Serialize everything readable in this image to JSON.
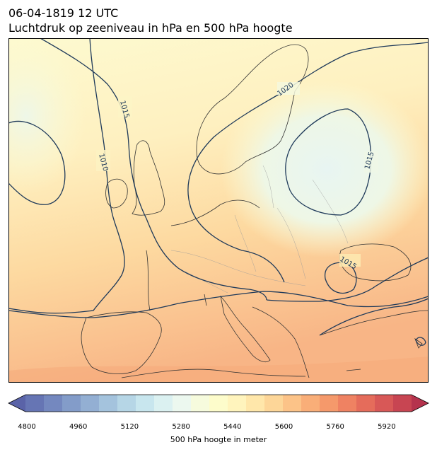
{
  "header": {
    "datetime": "06-04-1819 12 UTC",
    "subtitle": "Luchtdruk op zeeniveau in hPa en 500 hPa hoogte"
  },
  "map": {
    "region": "Europe",
    "isobar_labels": [
      {
        "text": "1015",
        "where": "north-atlantic"
      },
      {
        "text": "1010",
        "where": "west-of-ireland"
      },
      {
        "text": "1020",
        "where": "scandinavia"
      },
      {
        "text": "1015",
        "where": "baltic"
      },
      {
        "text": "1015",
        "where": "ukraine"
      }
    ],
    "colors": {
      "isobar": "#1f3a5a",
      "coast": "#333333",
      "border": "#999999"
    }
  },
  "colorbar": {
    "label": "500 hPa hoogte in meter",
    "ticks": [
      "4800",
      "4960",
      "5120",
      "5280",
      "5440",
      "5600",
      "5760",
      "5920"
    ],
    "colors": [
      "#5a63a8",
      "#6675b4",
      "#7488bf",
      "#839cc9",
      "#93afd3",
      "#a4c3dd",
      "#b6d6e6",
      "#c8e6ee",
      "#dbf1f1",
      "#ecf8ef",
      "#f6fbdd",
      "#fdfccb",
      "#fff4bd",
      "#ffe7aa",
      "#fdd698",
      "#fcc388",
      "#f9ae78",
      "#f5996b",
      "#ef8262",
      "#e56c5b",
      "#d85857",
      "#c84552",
      "#b5334d"
    ]
  }
}
